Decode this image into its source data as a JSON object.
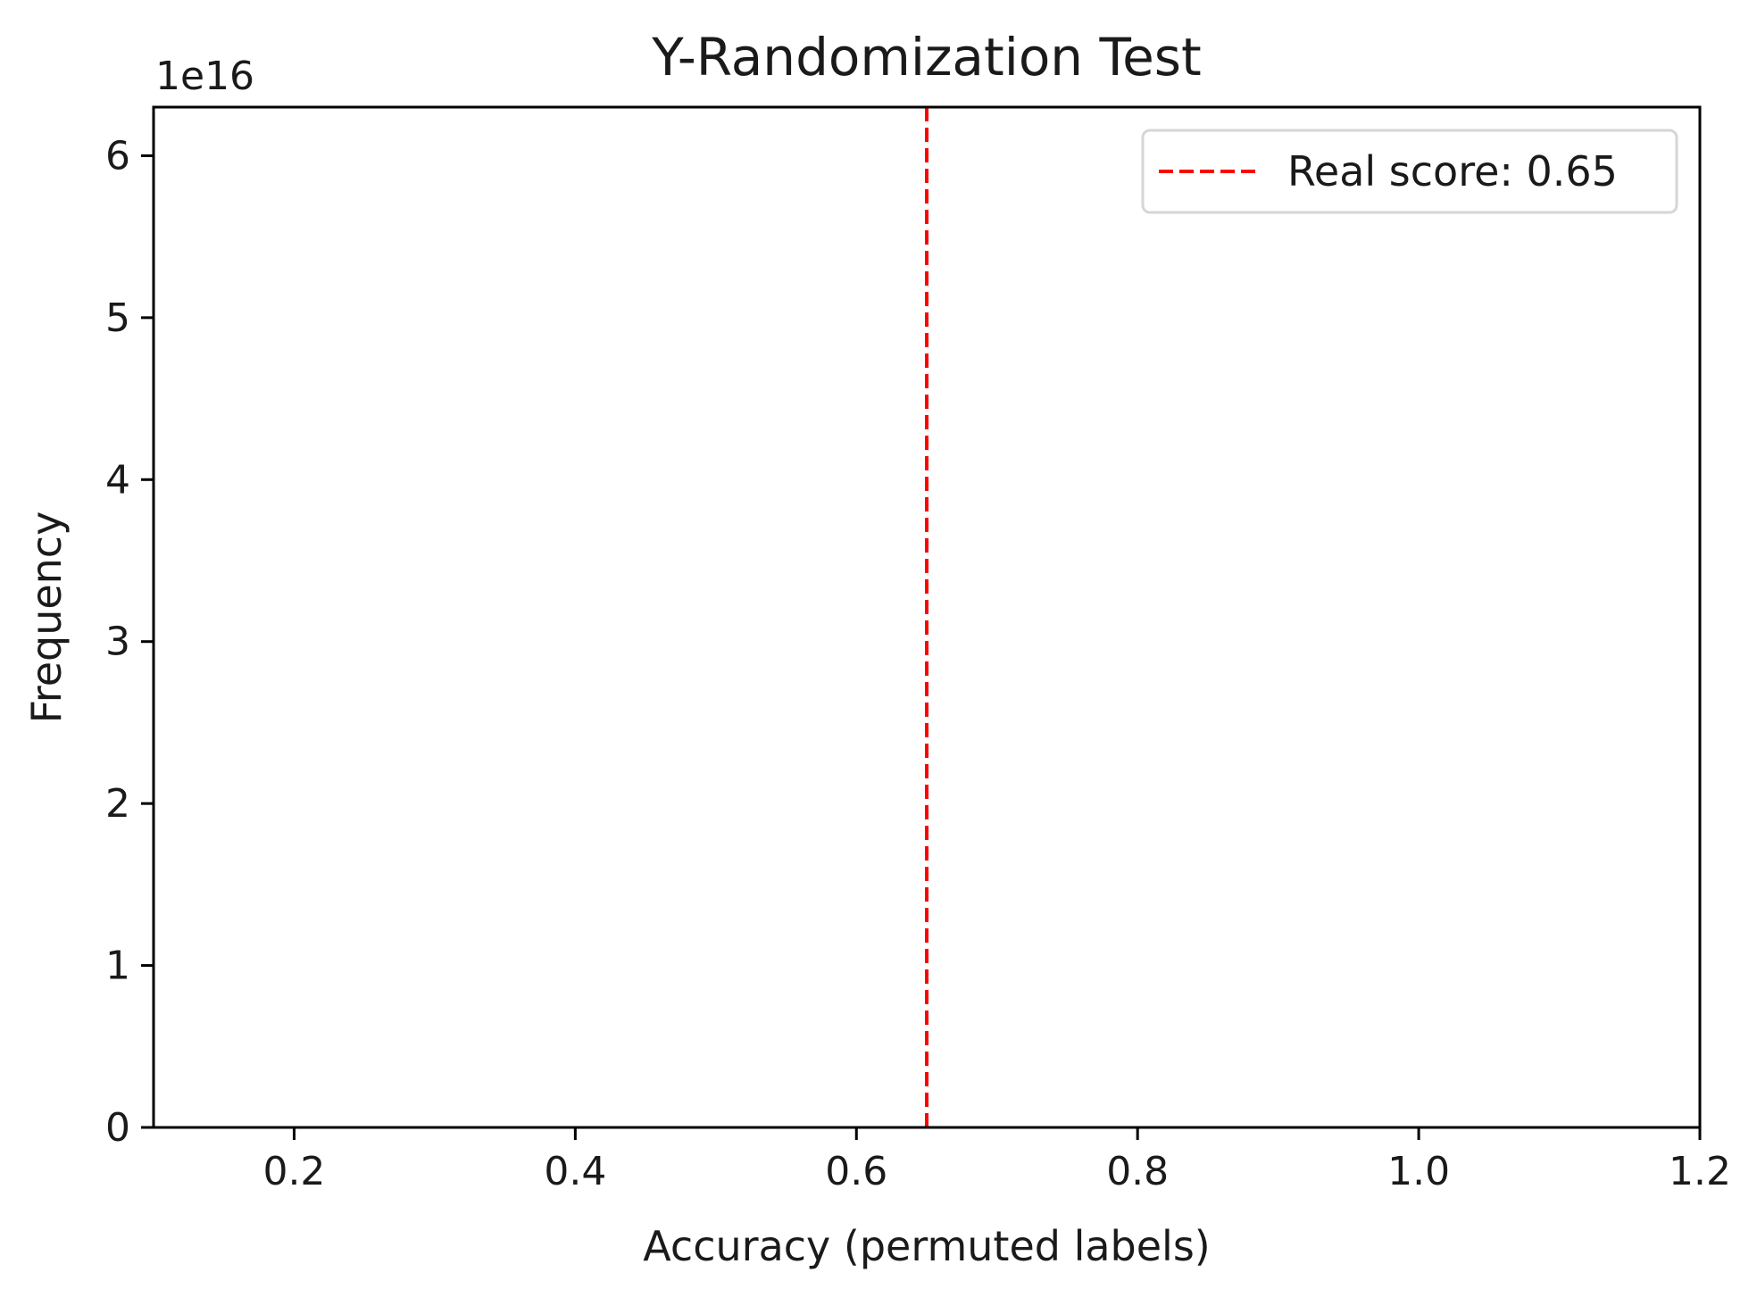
{
  "chart_data": {
    "type": "histogram",
    "title": "Y-Randomization Test",
    "xlabel": "Accuracy (permuted labels)",
    "ylabel": "Frequency",
    "xlim": [
      0.1,
      1.2
    ],
    "ylim": [
      0,
      6.3e+16
    ],
    "x_ticks": [
      {
        "value": 0.2,
        "label": "0.2"
      },
      {
        "value": 0.4,
        "label": "0.4"
      },
      {
        "value": 0.6,
        "label": "0.6"
      },
      {
        "value": 0.8,
        "label": "0.8"
      },
      {
        "value": 1.0,
        "label": "1.0"
      },
      {
        "value": 1.2,
        "label": "1.2"
      }
    ],
    "y_ticks": [
      {
        "value": 0,
        "label": "0"
      },
      {
        "value": 1e+16,
        "label": "1"
      },
      {
        "value": 2e+16,
        "label": "2"
      },
      {
        "value": 3e+16,
        "label": "3"
      },
      {
        "value": 4e+16,
        "label": "4"
      },
      {
        "value": 5e+16,
        "label": "5"
      },
      {
        "value": 6e+16,
        "label": "6"
      }
    ],
    "y_offset_label": "1e16",
    "histogram_range": [
      0.15,
      1.15
    ],
    "histogram_values": [],
    "reference_line": {
      "x": 0.65,
      "label": "Real score: 0.65",
      "color": "#ff0000",
      "style": "dashed"
    },
    "grid": false,
    "legend_position": "top-right",
    "colors": {
      "axis": "#000000",
      "histogram": "#1f1f1f",
      "text": "#1a1a1a"
    }
  }
}
